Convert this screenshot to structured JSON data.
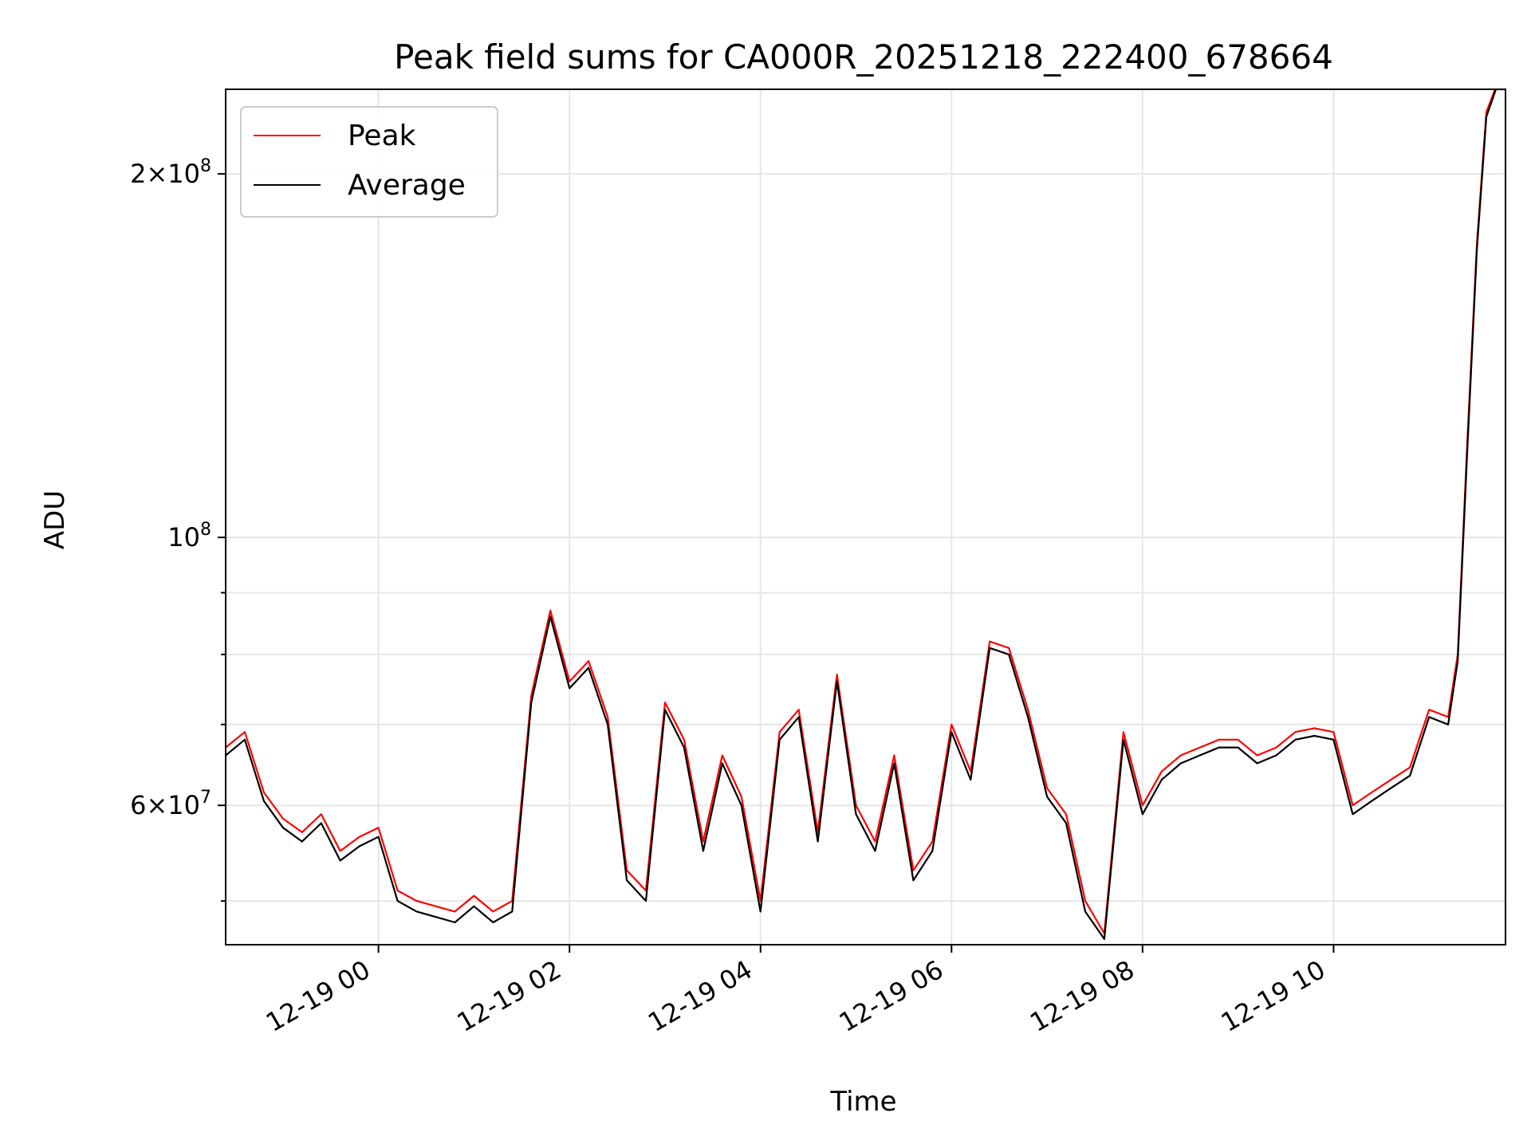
{
  "chart_data": {
    "type": "line",
    "title": "Peak field sums for CA000R_20251218_222400_678664",
    "xlabel": "Time",
    "ylabel": "ADU",
    "y_scale": "log",
    "ylim": [
      46000000,
      235000000
    ],
    "xlim": [
      "2025-12-18 22:24",
      "2025-12-19 11:48"
    ],
    "x_ticks": [
      "12-19 00",
      "12-19 02",
      "12-19 04",
      "12-19 06",
      "12-19 08",
      "12-19 10"
    ],
    "y_tick_labels": [
      {
        "value": 60000000,
        "mantissa": "6",
        "exponent": "7"
      },
      {
        "value": 100000000,
        "mantissa": "",
        "exponent": "8"
      },
      {
        "value": 200000000,
        "mantissa": "2",
        "exponent": "8"
      }
    ],
    "y_minor_ticks": [
      50000000,
      70000000,
      80000000,
      90000000
    ],
    "grid": true,
    "legend": {
      "placement": "top-left",
      "entries": [
        "Peak",
        "Average"
      ]
    },
    "colors": {
      "Peak": "#ff0000",
      "Average": "#000000",
      "grid": "#e6e6e6"
    },
    "x": [
      "2025-12-18 22:24",
      "2025-12-18 22:36",
      "2025-12-18 22:48",
      "2025-12-18 23:00",
      "2025-12-18 23:12",
      "2025-12-18 23:24",
      "2025-12-18 23:36",
      "2025-12-18 23:48",
      "2025-12-19 00:00",
      "2025-12-19 00:12",
      "2025-12-19 00:24",
      "2025-12-19 00:36",
      "2025-12-19 00:48",
      "2025-12-19 01:00",
      "2025-12-19 01:12",
      "2025-12-19 01:24",
      "2025-12-19 01:36",
      "2025-12-19 01:48",
      "2025-12-19 02:00",
      "2025-12-19 02:12",
      "2025-12-19 02:24",
      "2025-12-19 02:36",
      "2025-12-19 02:48",
      "2025-12-19 03:00",
      "2025-12-19 03:12",
      "2025-12-19 03:24",
      "2025-12-19 03:36",
      "2025-12-19 03:48",
      "2025-12-19 04:00",
      "2025-12-19 04:12",
      "2025-12-19 04:24",
      "2025-12-19 04:36",
      "2025-12-19 04:48",
      "2025-12-19 05:00",
      "2025-12-19 05:12",
      "2025-12-19 05:24",
      "2025-12-19 05:36",
      "2025-12-19 05:48",
      "2025-12-19 06:00",
      "2025-12-19 06:12",
      "2025-12-19 06:24",
      "2025-12-19 06:36",
      "2025-12-19 06:48",
      "2025-12-19 07:00",
      "2025-12-19 07:12",
      "2025-12-19 07:24",
      "2025-12-19 07:36",
      "2025-12-19 07:48",
      "2025-12-19 08:00",
      "2025-12-19 08:12",
      "2025-12-19 08:24",
      "2025-12-19 08:36",
      "2025-12-19 08:48",
      "2025-12-19 09:00",
      "2025-12-19 09:12",
      "2025-12-19 09:24",
      "2025-12-19 09:36",
      "2025-12-19 09:48",
      "2025-12-19 10:00",
      "2025-12-19 10:12",
      "2025-12-19 10:24",
      "2025-12-19 10:36",
      "2025-12-19 10:48",
      "2025-12-19 11:00",
      "2025-12-19 11:12",
      "2025-12-19 11:18",
      "2025-12-19 11:24",
      "2025-12-19 11:30",
      "2025-12-19 11:36",
      "2025-12-19 11:42",
      "2025-12-19 11:48"
    ],
    "series": [
      {
        "name": "Peak",
        "values": [
          67000000,
          69000000,
          61500000,
          58500000,
          57000000,
          59000000,
          55000000,
          56500000,
          57500000,
          51000000,
          50000000,
          49500000,
          49000000,
          50500000,
          49000000,
          50000000,
          74000000,
          87000000,
          76000000,
          79000000,
          71000000,
          53000000,
          51000000,
          73000000,
          68000000,
          56000000,
          66000000,
          61000000,
          50000000,
          69000000,
          72000000,
          57000000,
          77000000,
          60000000,
          56000000,
          66000000,
          53000000,
          56000000,
          70000000,
          64000000,
          82000000,
          81000000,
          72000000,
          62000000,
          59000000,
          50000000,
          47000000,
          69000000,
          60000000,
          64000000,
          66000000,
          67000000,
          68000000,
          68000000,
          66000000,
          67000000,
          69000000,
          69500000,
          69000000,
          60000000,
          61500000,
          63000000,
          64500000,
          72000000,
          71000000,
          80000000,
          120000000,
          175000000,
          225000000,
          236000000,
          236000000
        ]
      },
      {
        "name": "Average",
        "values": [
          66000000,
          68000000,
          60500000,
          57500000,
          56000000,
          58000000,
          54000000,
          55500000,
          56500000,
          50000000,
          49000000,
          48500000,
          48000000,
          49500000,
          48000000,
          49000000,
          73000000,
          86000000,
          75000000,
          78000000,
          70000000,
          52000000,
          50000000,
          72000000,
          67000000,
          55000000,
          65000000,
          60000000,
          49000000,
          68000000,
          71000000,
          56000000,
          76000000,
          59000000,
          55000000,
          65000000,
          52000000,
          55000000,
          69000000,
          63000000,
          81000000,
          80000000,
          71000000,
          61000000,
          58000000,
          49000000,
          46500000,
          68000000,
          59000000,
          63000000,
          65000000,
          66000000,
          67000000,
          67000000,
          65000000,
          66000000,
          68000000,
          68500000,
          68000000,
          59000000,
          60500000,
          62000000,
          63500000,
          71000000,
          70000000,
          79000000,
          118000000,
          173000000,
          223000000,
          235000000,
          235000000
        ]
      }
    ]
  }
}
